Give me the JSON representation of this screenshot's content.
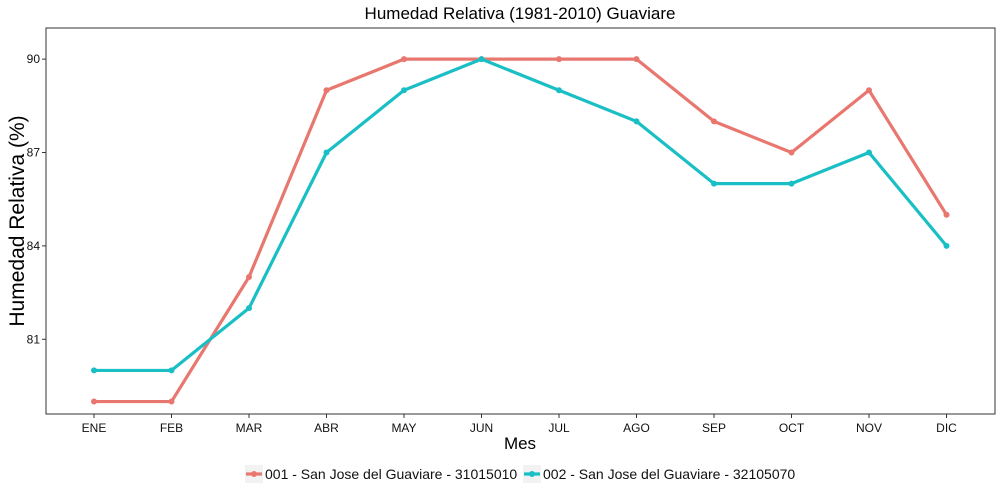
{
  "chart_data": {
    "type": "line",
    "title": "Humedad Relativa (1981-2010)  Guaviare",
    "xlabel": "Mes",
    "ylabel": "Humedad Relativa  (%)",
    "categories": [
      "ENE",
      "FEB",
      "MAR",
      "ABR",
      "MAY",
      "JUN",
      "JUL",
      "AGO",
      "SEP",
      "OCT",
      "NOV",
      "DIC"
    ],
    "ylim": [
      78.6,
      91.0
    ],
    "yticks": [
      81,
      84,
      87,
      90
    ],
    "grid": false,
    "legend_position": "bottom",
    "series": [
      {
        "name": "001 - San Jose del Guaviare - 31015010",
        "color": "#e8776f",
        "values": [
          79,
          79,
          83,
          89,
          90,
          90,
          90,
          90,
          88,
          87,
          89,
          85
        ]
      },
      {
        "name": "002 - San Jose del Guaviare - 32105070",
        "color": "#19bfc4",
        "values": [
          80,
          80,
          82,
          87,
          89,
          90,
          89,
          88,
          86,
          86,
          87,
          84
        ]
      }
    ]
  }
}
